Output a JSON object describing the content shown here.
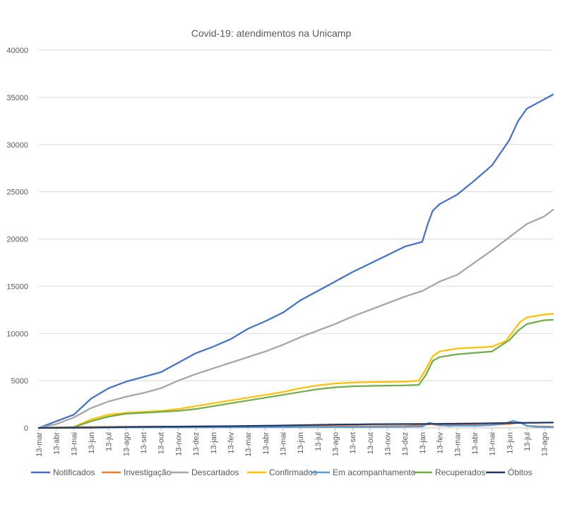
{
  "chart_data": {
    "type": "line",
    "title": "Covid-19: atendimentos  na Unicamp",
    "xlabel": "",
    "ylabel": "",
    "ylim": [
      0,
      40000
    ],
    "yticks": [
      0,
      5000,
      10000,
      15000,
      20000,
      25000,
      30000,
      35000,
      40000
    ],
    "grid": true,
    "legend": "bottom",
    "x_index_range": [
      0,
      29.5
    ],
    "categories": [
      "13-mar",
      "13-abr",
      "13-mai",
      "13-jun",
      "13-jul",
      "13-ago",
      "13-set",
      "13-out",
      "13-nov",
      "13-dez",
      "13-jan",
      "13-fev",
      "13-mar",
      "13-abr",
      "13-mai",
      "13-jun",
      "13-jul",
      "13-ago",
      "13-set",
      "13-out",
      "13-nov",
      "13-dez",
      "13-jan",
      "13-fev",
      "13-mar",
      "13-abr",
      "13-mai",
      "13-jun",
      "13-jul",
      "13-ago"
    ],
    "series": [
      {
        "name": "Notificados",
        "color": "#4472c4",
        "x": [
          0,
          1,
          2,
          3,
          4,
          5,
          6,
          7,
          8,
          9,
          10,
          11,
          12,
          13,
          14,
          15,
          16,
          17,
          18,
          19,
          20,
          21,
          22,
          22.3,
          22.6,
          23,
          24,
          25,
          26,
          27,
          27.5,
          28,
          29,
          29.5
        ],
        "values": [
          0,
          700,
          1400,
          3100,
          4200,
          4900,
          5400,
          5900,
          6900,
          7900,
          8600,
          9400,
          10500,
          11300,
          12200,
          13500,
          14500,
          15500,
          16500,
          17400,
          18300,
          19200,
          19700,
          21500,
          23000,
          23700,
          24700,
          26200,
          27800,
          30500,
          32500,
          33800,
          34800,
          35300
        ]
      },
      {
        "name": "Investigação",
        "color": "#ed7d31",
        "x": [
          0,
          1,
          2,
          3,
          5,
          7,
          9,
          11,
          13,
          15,
          17,
          19,
          21,
          22,
          22.5,
          23,
          24,
          25,
          26,
          27,
          27.6,
          28,
          29,
          29.5
        ],
        "values": [
          0,
          60,
          80,
          100,
          120,
          130,
          140,
          150,
          160,
          170,
          180,
          180,
          200,
          300,
          420,
          250,
          350,
          300,
          320,
          420,
          600,
          200,
          150,
          120
        ]
      },
      {
        "name": "Descartados",
        "color": "#a5a5a5",
        "x": [
          0,
          1,
          2,
          3,
          4,
          5,
          6,
          7,
          8,
          9,
          10,
          11,
          12,
          13,
          14,
          15,
          16,
          17,
          18,
          19,
          20,
          21,
          22,
          23,
          24,
          25,
          26,
          27,
          28,
          29,
          29.5
        ],
        "values": [
          0,
          400,
          1100,
          2100,
          2800,
          3300,
          3700,
          4200,
          5000,
          5700,
          6300,
          6900,
          7500,
          8100,
          8800,
          9600,
          10300,
          11000,
          11800,
          12500,
          13200,
          13900,
          14500,
          15500,
          16200,
          17500,
          18800,
          20200,
          21600,
          22400,
          23100
        ]
      },
      {
        "name": "Confirmados",
        "color": "#ffc000",
        "x": [
          0,
          1,
          2,
          3,
          4,
          5,
          6,
          7,
          8,
          9,
          10,
          11,
          12,
          13,
          14,
          15,
          16,
          17,
          18,
          19,
          20,
          21,
          21.8,
          22.2,
          22.6,
          23,
          24,
          25,
          26,
          26.8,
          27.2,
          27.6,
          28,
          29,
          29.5
        ],
        "values": [
          0,
          40,
          100,
          900,
          1400,
          1600,
          1700,
          1800,
          2000,
          2300,
          2600,
          2900,
          3200,
          3500,
          3800,
          4200,
          4500,
          4700,
          4800,
          4850,
          4870,
          4900,
          5000,
          6200,
          7600,
          8100,
          8400,
          8500,
          8600,
          9200,
          10200,
          11200,
          11700,
          12000,
          12100
        ]
      },
      {
        "name": "Em acompanhamento",
        "color": "#5b9bd5",
        "x": [
          0,
          2,
          4,
          6,
          8,
          10,
          12,
          14,
          16,
          18,
          20,
          22,
          22.4,
          22.8,
          23.5,
          24,
          25,
          26,
          26.8,
          27.2,
          27.6,
          28,
          28.5,
          29,
          29.5
        ],
        "values": [
          0,
          20,
          40,
          50,
          60,
          70,
          80,
          90,
          100,
          100,
          110,
          150,
          550,
          350,
          200,
          250,
          220,
          300,
          500,
          750,
          550,
          250,
          120,
          80,
          60
        ]
      },
      {
        "name": "Recuperados",
        "color": "#70ad47",
        "x": [
          0,
          1,
          2,
          3,
          4,
          5,
          6,
          7,
          8,
          9,
          10,
          11,
          12,
          13,
          14,
          15,
          16,
          17,
          18,
          19,
          20,
          21,
          21.8,
          22.2,
          22.6,
          23,
          24,
          25,
          26,
          27,
          27.5,
          28,
          29,
          29.5
        ],
        "values": [
          0,
          20,
          80,
          700,
          1200,
          1500,
          1600,
          1700,
          1800,
          2000,
          2300,
          2600,
          2900,
          3200,
          3500,
          3800,
          4100,
          4300,
          4400,
          4450,
          4480,
          4500,
          4550,
          5600,
          7100,
          7500,
          7800,
          7950,
          8100,
          9300,
          10300,
          11000,
          11400,
          11450
        ]
      },
      {
        "name": "Óbitos",
        "color": "#203864",
        "x": [
          0,
          1,
          3,
          5,
          7,
          9,
          11,
          13,
          15,
          17,
          19,
          21,
          23,
          25,
          27,
          29,
          29.5
        ],
        "values": [
          0,
          10,
          40,
          90,
          130,
          160,
          190,
          230,
          290,
          350,
          390,
          410,
          430,
          460,
          520,
          560,
          570
        ]
      }
    ]
  }
}
